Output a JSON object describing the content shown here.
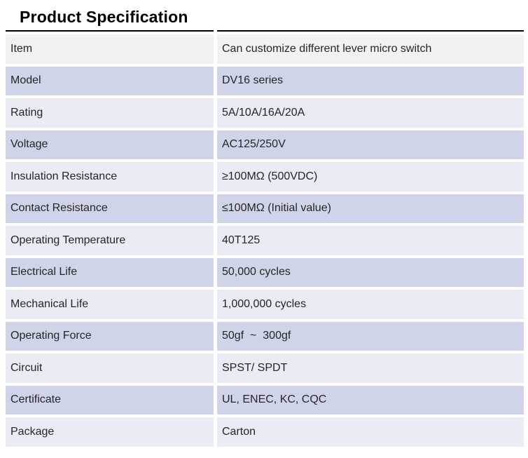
{
  "title": "Product Specification",
  "colors": {
    "background": "#ffffff",
    "top_border": "#000000",
    "text": "#262626",
    "title": "#000000",
    "row_gray": "#f2f2f2",
    "row_medium": "#cfd4e8",
    "row_pale": "#e9ebf5"
  },
  "table": {
    "columns": [
      "label",
      "value"
    ],
    "rows": [
      {
        "label": "Item",
        "value": "Can customize different lever micro switch",
        "shade": "gray"
      },
      {
        "label": "Model",
        "value": "DV16 series",
        "shade": "medium"
      },
      {
        "label": "Rating",
        "value": "5A/10A/16A/20A",
        "shade": "pale"
      },
      {
        "label": "Voltage",
        "value": "AC125/250V",
        "shade": "medium"
      },
      {
        "label": "Insulation Resistance",
        "value": "≥100MΩ (500VDC)",
        "shade": "pale"
      },
      {
        "label": "Contact Resistance",
        "value": "≤100MΩ (Initial value)",
        "shade": "medium"
      },
      {
        "label": "Operating Temperature",
        "value": "40T125",
        "shade": "pale"
      },
      {
        "label": "Electrical Life",
        "value": "50,000 cycles",
        "shade": "medium"
      },
      {
        "label": "Mechanical Life",
        "value": "1,000,000 cycles",
        "shade": "pale"
      },
      {
        "label": "Operating Force",
        "value": "50gf  ~  300gf",
        "shade": "medium"
      },
      {
        "label": "Circuit",
        "value": "SPST/ SPDT",
        "shade": "pale"
      },
      {
        "label": "Certificate",
        "value": "UL, ENEC, KC, CQC",
        "shade": "medium"
      },
      {
        "label": "Package",
        "value": "Carton",
        "shade": "pale"
      }
    ]
  }
}
